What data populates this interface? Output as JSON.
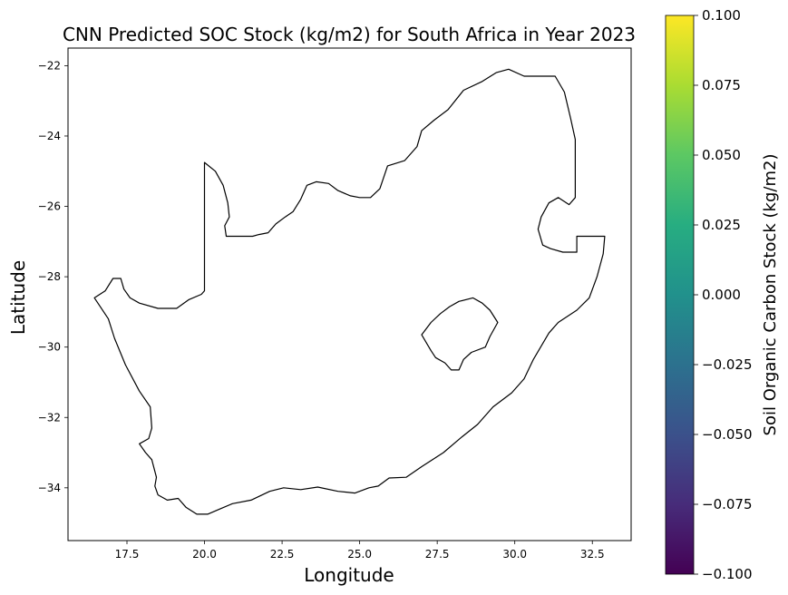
{
  "chart_data": {
    "type": "heatmap",
    "title": "CNN Predicted SOC Stock (kg/m2) for South Africa in Year 2023",
    "xlabel": "Longitude",
    "ylabel": "Latitude",
    "xlim": [
      15.6,
      33.75
    ],
    "ylim": [
      -35.5,
      -21.5
    ],
    "x_ticks": [
      17.5,
      20.0,
      22.5,
      25.0,
      27.5,
      30.0,
      32.5
    ],
    "x_tick_labels": [
      "17.5",
      "20.0",
      "22.5",
      "25.0",
      "27.5",
      "30.0",
      "32.5"
    ],
    "y_ticks": [
      -22,
      -24,
      -26,
      -28,
      -30,
      -32,
      -34
    ],
    "y_tick_labels": [
      "−22",
      "−24",
      "−26",
      "−28",
      "−30",
      "−32",
      "−34"
    ],
    "grid": false,
    "boundaries": {
      "south_africa": [
        [
          16.45,
          -28.6
        ],
        [
          16.8,
          -28.4
        ],
        [
          17.05,
          -28.05
        ],
        [
          17.3,
          -28.05
        ],
        [
          17.4,
          -28.35
        ],
        [
          17.6,
          -28.6
        ],
        [
          17.9,
          -28.75
        ],
        [
          18.5,
          -28.9
        ],
        [
          19.1,
          -28.9
        ],
        [
          19.5,
          -28.65
        ],
        [
          19.9,
          -28.5
        ],
        [
          20.0,
          -28.4
        ],
        [
          20.0,
          -24.75
        ],
        [
          20.35,
          -25.0
        ],
        [
          20.6,
          -25.4
        ],
        [
          20.75,
          -25.9
        ],
        [
          20.8,
          -26.3
        ],
        [
          20.65,
          -26.55
        ],
        [
          20.7,
          -26.85
        ],
        [
          21.1,
          -26.85
        ],
        [
          21.55,
          -26.85
        ],
        [
          21.75,
          -26.8
        ],
        [
          22.05,
          -26.75
        ],
        [
          22.3,
          -26.5
        ],
        [
          22.6,
          -26.3
        ],
        [
          22.85,
          -26.15
        ],
        [
          23.1,
          -25.8
        ],
        [
          23.3,
          -25.4
        ],
        [
          23.6,
          -25.3
        ],
        [
          24.0,
          -25.35
        ],
        [
          24.3,
          -25.55
        ],
        [
          24.7,
          -25.7
        ],
        [
          25.0,
          -25.75
        ],
        [
          25.35,
          -25.75
        ],
        [
          25.65,
          -25.5
        ],
        [
          25.9,
          -24.85
        ],
        [
          26.45,
          -24.7
        ],
        [
          26.85,
          -24.3
        ],
        [
          27.0,
          -23.85
        ],
        [
          27.4,
          -23.55
        ],
        [
          27.85,
          -23.25
        ],
        [
          28.35,
          -22.7
        ],
        [
          28.95,
          -22.45
        ],
        [
          29.4,
          -22.2
        ],
        [
          29.8,
          -22.1
        ],
        [
          30.3,
          -22.3
        ],
        [
          30.9,
          -22.3
        ],
        [
          31.3,
          -22.3
        ],
        [
          31.6,
          -22.75
        ],
        [
          31.8,
          -23.5
        ],
        [
          31.95,
          -24.1
        ],
        [
          31.95,
          -25.0
        ],
        [
          31.95,
          -25.75
        ],
        [
          31.75,
          -25.95
        ],
        [
          31.4,
          -25.75
        ],
        [
          31.1,
          -25.9
        ],
        [
          30.85,
          -26.3
        ],
        [
          30.75,
          -26.65
        ],
        [
          30.9,
          -27.1
        ],
        [
          31.15,
          -27.2
        ],
        [
          31.55,
          -27.3
        ],
        [
          32.0,
          -27.3
        ],
        [
          32.0,
          -26.85
        ],
        [
          32.9,
          -26.85
        ],
        [
          32.85,
          -27.35
        ],
        [
          32.65,
          -28.0
        ],
        [
          32.4,
          -28.6
        ],
        [
          32.0,
          -28.95
        ],
        [
          31.4,
          -29.3
        ],
        [
          31.1,
          -29.6
        ],
        [
          30.6,
          -30.35
        ],
        [
          30.3,
          -30.9
        ],
        [
          29.9,
          -31.3
        ],
        [
          29.3,
          -31.7
        ],
        [
          28.8,
          -32.2
        ],
        [
          28.3,
          -32.55
        ],
        [
          27.7,
          -33.0
        ],
        [
          27.0,
          -33.4
        ],
        [
          26.5,
          -33.7
        ],
        [
          25.95,
          -33.72
        ],
        [
          25.6,
          -33.95
        ],
        [
          25.3,
          -34.0
        ],
        [
          24.85,
          -34.15
        ],
        [
          24.3,
          -34.1
        ],
        [
          23.65,
          -33.98
        ],
        [
          23.1,
          -34.05
        ],
        [
          22.55,
          -34.0
        ],
        [
          22.1,
          -34.1
        ],
        [
          21.5,
          -34.35
        ],
        [
          20.9,
          -34.45
        ],
        [
          20.5,
          -34.6
        ],
        [
          20.1,
          -34.75
        ],
        [
          19.75,
          -34.75
        ],
        [
          19.4,
          -34.55
        ],
        [
          19.15,
          -34.3
        ],
        [
          18.8,
          -34.35
        ],
        [
          18.5,
          -34.2
        ],
        [
          18.4,
          -33.95
        ],
        [
          18.45,
          -33.7
        ],
        [
          18.3,
          -33.2
        ],
        [
          18.1,
          -33.0
        ],
        [
          17.9,
          -32.75
        ],
        [
          18.2,
          -32.6
        ],
        [
          18.3,
          -32.3
        ],
        [
          18.25,
          -31.7
        ],
        [
          17.9,
          -31.25
        ],
        [
          17.45,
          -30.5
        ],
        [
          17.1,
          -29.75
        ],
        [
          16.9,
          -29.2
        ],
        [
          16.6,
          -28.8
        ],
        [
          16.45,
          -28.6
        ]
      ],
      "lesotho": [
        [
          27.0,
          -29.65
        ],
        [
          27.3,
          -29.3
        ],
        [
          27.6,
          -29.05
        ],
        [
          27.9,
          -28.85
        ],
        [
          28.2,
          -28.7
        ],
        [
          28.65,
          -28.6
        ],
        [
          28.95,
          -28.75
        ],
        [
          29.2,
          -28.95
        ],
        [
          29.45,
          -29.3
        ],
        [
          29.2,
          -29.7
        ],
        [
          29.05,
          -30.0
        ],
        [
          28.6,
          -30.15
        ],
        [
          28.35,
          -30.35
        ],
        [
          28.2,
          -30.65
        ],
        [
          27.95,
          -30.65
        ],
        [
          27.75,
          -30.45
        ],
        [
          27.45,
          -30.3
        ],
        [
          27.3,
          -30.1
        ],
        [
          27.0,
          -29.65
        ]
      ]
    },
    "colorbar": {
      "label": "Soil Organic Carbon Stock (kg/m2)",
      "range": [
        -0.1,
        0.1
      ],
      "colormap": "viridis",
      "stops": [
        "#440154",
        "#472c7a",
        "#3b518b",
        "#2c718e",
        "#21918c",
        "#27ad81",
        "#5cc863",
        "#aadc32",
        "#fde725"
      ],
      "ticks": [
        0.1,
        0.075,
        0.05,
        0.025,
        0.0,
        -0.025,
        -0.05,
        -0.075,
        -0.1
      ],
      "tick_labels": [
        "0.100",
        "0.075",
        "0.050",
        "0.025",
        "0.000",
        "−0.025",
        "−0.050",
        "−0.075",
        "−0.100"
      ]
    }
  }
}
